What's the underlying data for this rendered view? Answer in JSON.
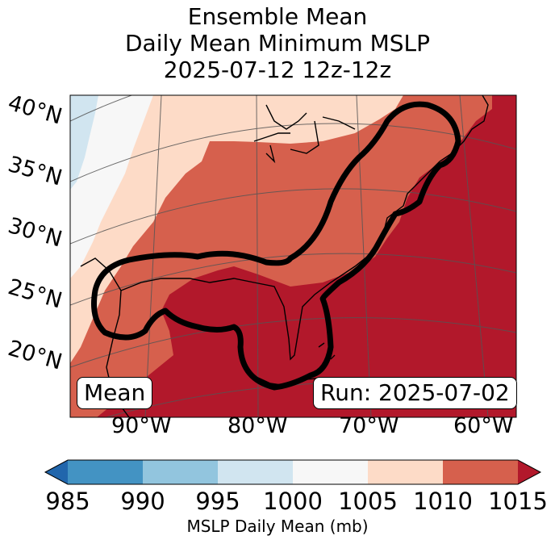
{
  "title": {
    "line1": "Ensemble Mean",
    "line2": "Daily Mean Minimum MSLP",
    "line3": "2025-07-12 12z-12z"
  },
  "map": {
    "lat_labels": [
      "40°N",
      "35°N",
      "30°N",
      "25°N",
      "20°N"
    ],
    "lon_labels": [
      "90°W",
      "80°W",
      "70°W",
      "60°W"
    ],
    "mean_box": "Mean",
    "run_box": "Run: 2025-07-02",
    "colors": {
      "c1000_1005": "#f7f7f7",
      "c995_1000": "#d1e5f0",
      "c1005_1010": "#fddbc7",
      "c1010_1015": "#d6604d",
      "c1015_plus": "#b2182b"
    }
  },
  "colorbar": {
    "ticks": [
      "985",
      "990",
      "995",
      "1000",
      "1005",
      "1010",
      "1015"
    ],
    "label": "MSLP Daily Mean (mb)",
    "colors": [
      "#2166ac",
      "#4393c3",
      "#92c5de",
      "#d1e5f0",
      "#f7f7f7",
      "#fddbc7",
      "#d6604d",
      "#b2182b"
    ]
  }
}
